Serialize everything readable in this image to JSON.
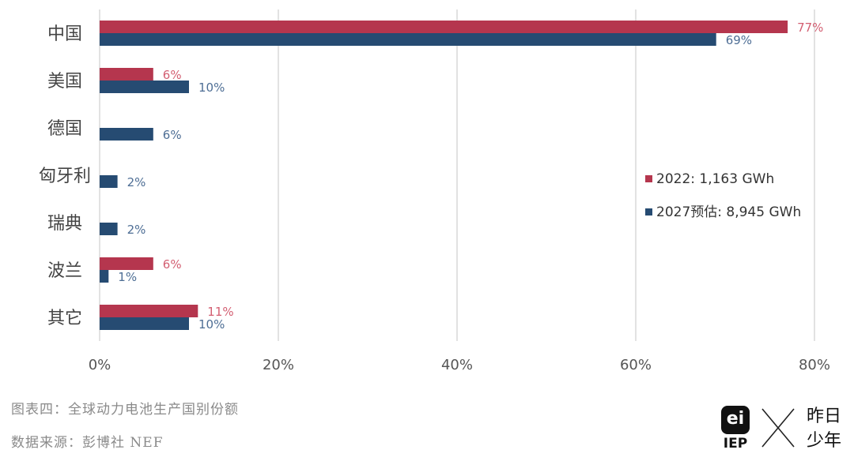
{
  "chart_data": {
    "type": "bar",
    "orientation": "horizontal",
    "categories": [
      "中国",
      "美国",
      "德国",
      "匈牙利",
      "瑞典",
      "波兰",
      "其它"
    ],
    "series": [
      {
        "name": "2022: 1,163 GWh",
        "color": "#B5364E",
        "label_color": "#D35F72",
        "values": [
          77,
          6,
          null,
          null,
          null,
          6,
          11
        ],
        "labels": [
          "77%",
          "6%",
          "",
          "",
          "",
          "6%",
          "11%"
        ]
      },
      {
        "name": "2027预估: 8,945 GWh",
        "color": "#264B72",
        "label_color": "#4E6E95",
        "values": [
          69,
          10,
          6,
          2,
          2,
          1,
          10
        ],
        "labels": [
          "69%",
          "10%",
          "6%",
          "2%",
          "2%",
          "1%",
          "10%"
        ]
      }
    ],
    "xlim": [
      0,
      80
    ],
    "xticks": [
      0,
      20,
      40,
      60,
      80
    ],
    "xtick_labels": [
      "0%",
      "20%",
      "40%",
      "60%",
      "80%"
    ],
    "grid": "vertical",
    "legend_position": "right"
  },
  "footer": {
    "caption": "图表四：全球动力电池生产国别份额",
    "source": "数据来源：彭博社 NEF"
  },
  "brand": {
    "logo_mark": "ei",
    "logo_text": "IEP",
    "name_line1": "昨日",
    "name_line2": "少年"
  }
}
